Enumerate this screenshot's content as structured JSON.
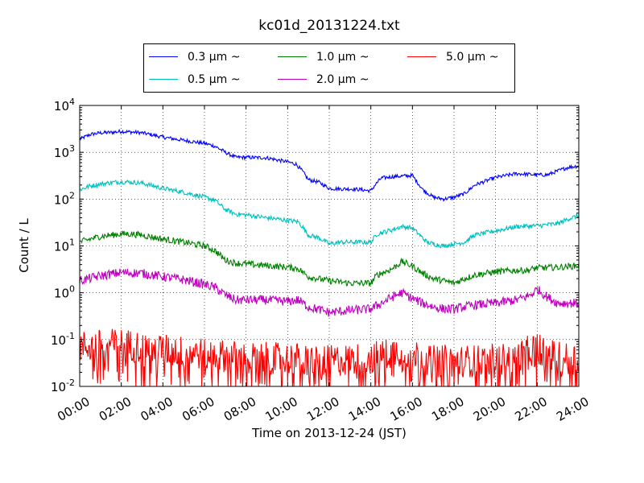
{
  "chart_data": {
    "type": "line",
    "title": "kc01d_20131224.txt",
    "xlabel": "Time on 2013-12-24 (JST)",
    "ylabel": "Count / L",
    "x_tick_labels": [
      "00:00",
      "02:00",
      "04:00",
      "06:00",
      "08:00",
      "10:00",
      "12:00",
      "14:00",
      "16:00",
      "18:00",
      "20:00",
      "22:00",
      "24:00"
    ],
    "y_tick_labels": [
      {
        "base": "10",
        "exp": "-2"
      },
      {
        "base": "10",
        "exp": "-1"
      },
      {
        "base": "10",
        "exp": "0"
      },
      {
        "base": "10",
        "exp": "1"
      },
      {
        "base": "10",
        "exp": "2"
      },
      {
        "base": "10",
        "exp": "3"
      },
      {
        "base": "10",
        "exp": "4"
      }
    ],
    "xlim_hours": [
      0,
      24
    ],
    "ylim": [
      0.01,
      10000
    ],
    "yscale": "log",
    "grid": true,
    "legend_position": "top-center",
    "series": [
      {
        "name": "0.3 μm ~",
        "color": "#0000ff",
        "points": [
          [
            0,
            1900
          ],
          [
            0.5,
            2400
          ],
          [
            1,
            2600
          ],
          [
            1.5,
            2650
          ],
          [
            2,
            2800
          ],
          [
            2.5,
            2700
          ],
          [
            3,
            2600
          ],
          [
            3.5,
            2350
          ],
          [
            4,
            2100
          ],
          [
            5,
            1800
          ],
          [
            6,
            1550
          ],
          [
            6.5,
            1350
          ],
          [
            7,
            1000
          ],
          [
            7.5,
            780
          ],
          [
            8,
            780
          ],
          [
            9,
            760
          ],
          [
            10,
            620
          ],
          [
            10.4,
            560
          ],
          [
            10.7,
            400
          ],
          [
            11,
            260
          ],
          [
            11.5,
            230
          ],
          [
            12,
            170
          ],
          [
            12.5,
            165
          ],
          [
            13,
            165
          ],
          [
            13.5,
            160
          ],
          [
            14,
            150
          ],
          [
            14.2,
            200
          ],
          [
            14.5,
            280
          ],
          [
            15,
            300
          ],
          [
            15.5,
            310
          ],
          [
            16,
            320
          ],
          [
            16.2,
            240
          ],
          [
            16.5,
            160
          ],
          [
            17,
            110
          ],
          [
            17.5,
            100
          ],
          [
            18,
            110
          ],
          [
            18.5,
            130
          ],
          [
            19,
            200
          ],
          [
            20,
            290
          ],
          [
            21,
            350
          ],
          [
            22,
            330
          ],
          [
            22.5,
            330
          ],
          [
            23,
            400
          ],
          [
            23.5,
            480
          ],
          [
            24,
            510
          ]
        ],
        "noise": 0.04
      },
      {
        "name": "0.5 μm ~",
        "color": "#00bfbf",
        "points": [
          [
            0,
            160
          ],
          [
            0.5,
            190
          ],
          [
            1,
            210
          ],
          [
            1.5,
            225
          ],
          [
            2,
            235
          ],
          [
            2.5,
            230
          ],
          [
            3,
            220
          ],
          [
            4,
            170
          ],
          [
            5,
            140
          ],
          [
            6,
            110
          ],
          [
            6.5,
            95
          ],
          [
            7,
            60
          ],
          [
            7.5,
            48
          ],
          [
            8,
            46
          ],
          [
            9,
            40
          ],
          [
            10,
            35
          ],
          [
            10.5,
            33
          ],
          [
            10.7,
            26
          ],
          [
            11,
            17
          ],
          [
            11.5,
            15
          ],
          [
            12,
            11
          ],
          [
            12.5,
            12
          ],
          [
            13,
            12
          ],
          [
            13.5,
            12
          ],
          [
            14,
            12
          ],
          [
            14.3,
            18
          ],
          [
            15,
            22
          ],
          [
            15.5,
            26
          ],
          [
            16,
            24
          ],
          [
            16.3,
            18
          ],
          [
            16.7,
            12
          ],
          [
            17,
            11
          ],
          [
            17.5,
            10
          ],
          [
            18,
            11
          ],
          [
            18.5,
            12
          ],
          [
            19,
            17
          ],
          [
            20,
            21
          ],
          [
            21,
            26
          ],
          [
            22,
            27
          ],
          [
            23,
            30
          ],
          [
            23.5,
            38
          ],
          [
            24,
            44
          ]
        ],
        "noise": 0.05
      },
      {
        "name": "1.0 μm ~",
        "color": "#008000",
        "points": [
          [
            0,
            12
          ],
          [
            0.5,
            14
          ],
          [
            1,
            16
          ],
          [
            2,
            18
          ],
          [
            2.5,
            18
          ],
          [
            3,
            17
          ],
          [
            4,
            14
          ],
          [
            5,
            12
          ],
          [
            6,
            10
          ],
          [
            6.5,
            8
          ],
          [
            7,
            5
          ],
          [
            7.5,
            4.3
          ],
          [
            8,
            4.1
          ],
          [
            9,
            3.8
          ],
          [
            10,
            3.5
          ],
          [
            10.5,
            3.3
          ],
          [
            11,
            2.2
          ],
          [
            12,
            1.8
          ],
          [
            12.5,
            1.7
          ],
          [
            13,
            1.6
          ],
          [
            13.5,
            1.6
          ],
          [
            14,
            1.6
          ],
          [
            14.3,
            2.4
          ],
          [
            15,
            3.2
          ],
          [
            15.5,
            4.6
          ],
          [
            16,
            3.7
          ],
          [
            16.5,
            2.6
          ],
          [
            17,
            2
          ],
          [
            17.5,
            1.8
          ],
          [
            18,
            1.6
          ],
          [
            18.5,
            2
          ],
          [
            19,
            2.4
          ],
          [
            20,
            2.8
          ],
          [
            21,
            3
          ],
          [
            21.5,
            3
          ],
          [
            22,
            3.4
          ],
          [
            23,
            3.5
          ],
          [
            24,
            3.8
          ]
        ],
        "noise": 0.07
      },
      {
        "name": "2.0 μm ~",
        "color": "#bf00bf",
        "points": [
          [
            0,
            1.8
          ],
          [
            1,
            2.3
          ],
          [
            2,
            2.7
          ],
          [
            3,
            2.6
          ],
          [
            4,
            2.2
          ],
          [
            5,
            1.9
          ],
          [
            6,
            1.5
          ],
          [
            6.5,
            1.3
          ],
          [
            7,
            0.9
          ],
          [
            7.5,
            0.7
          ],
          [
            8,
            0.7
          ],
          [
            9,
            0.7
          ],
          [
            10,
            0.65
          ],
          [
            10.5,
            0.7
          ],
          [
            11,
            0.5
          ],
          [
            12,
            0.38
          ],
          [
            13,
            0.42
          ],
          [
            14,
            0.45
          ],
          [
            14.5,
            0.6
          ],
          [
            15,
            0.8
          ],
          [
            15.5,
            1
          ],
          [
            16,
            0.75
          ],
          [
            16.5,
            0.6
          ],
          [
            17,
            0.5
          ],
          [
            17.5,
            0.45
          ],
          [
            18,
            0.45
          ],
          [
            18.5,
            0.5
          ],
          [
            19,
            0.55
          ],
          [
            20,
            0.6
          ],
          [
            21,
            0.7
          ],
          [
            21.7,
            0.9
          ],
          [
            22,
            1.2
          ],
          [
            22.5,
            0.8
          ],
          [
            23,
            0.6
          ],
          [
            24,
            0.6
          ]
        ],
        "noise": 0.1
      },
      {
        "name": "5.0 μm ~",
        "color": "#ff0000",
        "points": [
          [
            0,
            0.07
          ],
          [
            2,
            0.08
          ],
          [
            4,
            0.06
          ],
          [
            6,
            0.05
          ],
          [
            8,
            0.04
          ],
          [
            10,
            0.04
          ],
          [
            12,
            0.035
          ],
          [
            14,
            0.04
          ],
          [
            15.5,
            0.06
          ],
          [
            17,
            0.035
          ],
          [
            19,
            0.035
          ],
          [
            21,
            0.04
          ],
          [
            22,
            0.07
          ],
          [
            23,
            0.04
          ],
          [
            24,
            0.04
          ]
        ],
        "noise": 0.35
      }
    ]
  }
}
